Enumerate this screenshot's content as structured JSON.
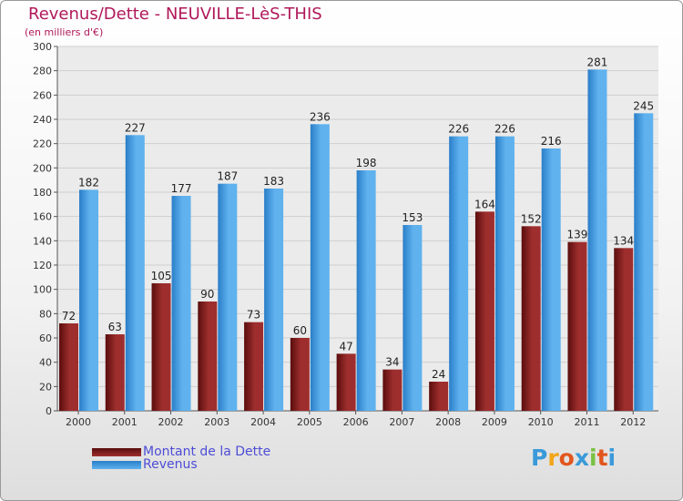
{
  "title": "Revenus/Dette - NEUVILLE-LèS-THIS",
  "subtitle": "(en milliers d'€)",
  "colors": {
    "dette_dark": "#5a0d0d",
    "dette_light": "#9e2e2e",
    "revenus_dark": "#2a7ec8",
    "revenus_light": "#5fb2ee",
    "title": "#b0185a",
    "legend_text": "#4d4dd6"
  },
  "chart_data": {
    "type": "bar",
    "title": "Revenus/Dette - NEUVILLE-LèS-THIS",
    "ylabel": "(en milliers d'€)",
    "xlabel": "",
    "ylim": [
      0,
      300
    ],
    "yticks": [
      0,
      20,
      40,
      60,
      80,
      100,
      120,
      140,
      160,
      180,
      200,
      220,
      240,
      260,
      280,
      300
    ],
    "grid": true,
    "categories": [
      "2000",
      "2001",
      "2002",
      "2003",
      "2004",
      "2005",
      "2006",
      "2007",
      "2008",
      "2009",
      "2010",
      "2011",
      "2012"
    ],
    "series": [
      {
        "name": "Montant de la Dette",
        "values": [
          72,
          63,
          105,
          90,
          73,
          60,
          47,
          34,
          24,
          164,
          152,
          139,
          134
        ]
      },
      {
        "name": "Revenus",
        "values": [
          182,
          227,
          177,
          187,
          183,
          236,
          198,
          153,
          226,
          226,
          216,
          281,
          245
        ]
      }
    ]
  },
  "legend": {
    "items": [
      {
        "label": "Montant de la Dette",
        "icon": "dark-red-bar"
      },
      {
        "label": "Revenus",
        "icon": "blue-bar"
      }
    ]
  },
  "logo": {
    "letters": [
      "P",
      "r",
      "o",
      "x",
      "i",
      "t",
      "i"
    ],
    "colors": [
      "#3a9ad9",
      "#f2a516",
      "#e2561d",
      "#3a9ad9",
      "#7ac143",
      "#e2561d",
      "#3a9ad9"
    ]
  }
}
